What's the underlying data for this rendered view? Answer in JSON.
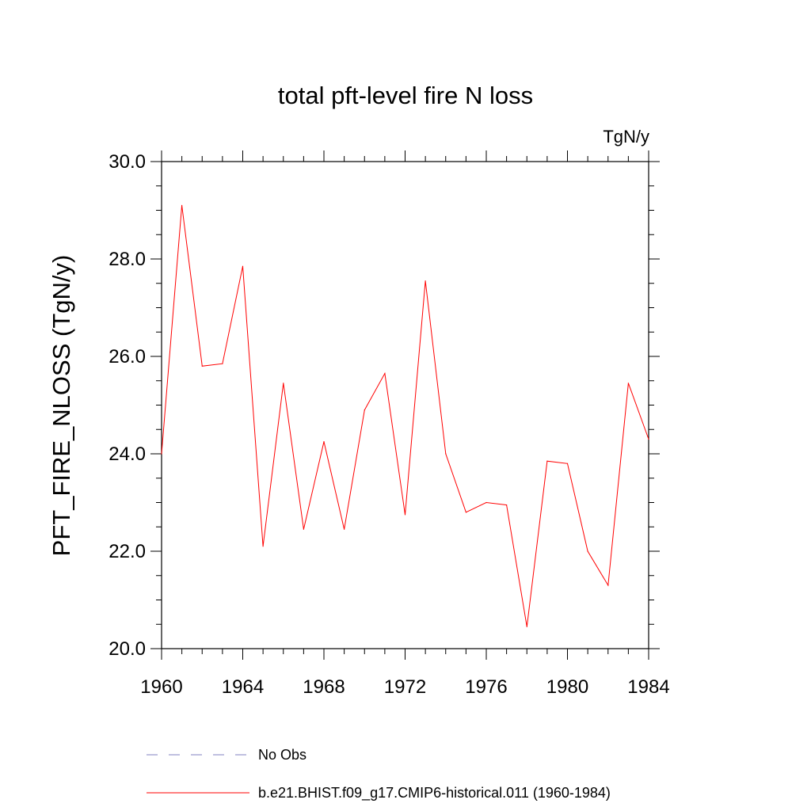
{
  "chart_data": {
    "type": "line",
    "title": "total pft-level fire N loss",
    "units": "TgN/y",
    "xlabel": "",
    "ylabel": "PFT_FIRE_NLOSS  (TgN/y)",
    "xlim": [
      1960,
      1984
    ],
    "ylim": [
      20.0,
      30.0
    ],
    "x_ticks": [
      1960,
      1964,
      1968,
      1972,
      1976,
      1980,
      1984
    ],
    "x_tick_labels": [
      "1960",
      "1964",
      "1968",
      "1972",
      "1976",
      "1980",
      "1984"
    ],
    "y_ticks": [
      20.0,
      22.0,
      24.0,
      26.0,
      28.0,
      30.0
    ],
    "y_tick_labels": [
      "20.0",
      "22.0",
      "24.0",
      "26.0",
      "28.0",
      "30.0"
    ],
    "grid": false,
    "legend_position": "bottom",
    "series": [
      {
        "name": "No Obs",
        "color": "#8080c0",
        "dash": "dashed",
        "x": [],
        "values": []
      },
      {
        "name": "b.e21.BHIST.f09_g17.CMIP6-historical.011 (1960-1984)",
        "color": "#ff0000",
        "dash": "solid",
        "x": [
          1960,
          1961,
          1962,
          1963,
          1964,
          1965,
          1966,
          1967,
          1968,
          1969,
          1970,
          1971,
          1972,
          1973,
          1974,
          1975,
          1976,
          1977,
          1978,
          1979,
          1980,
          1981,
          1982,
          1983,
          1984
        ],
        "values": [
          24.0,
          29.1,
          25.8,
          25.85,
          27.85,
          22.1,
          25.45,
          22.45,
          24.25,
          22.45,
          24.9,
          25.65,
          22.75,
          27.55,
          24.0,
          22.8,
          23.0,
          22.95,
          20.45,
          23.85,
          23.8,
          22.0,
          21.3,
          25.45,
          24.3
        ]
      }
    ]
  }
}
